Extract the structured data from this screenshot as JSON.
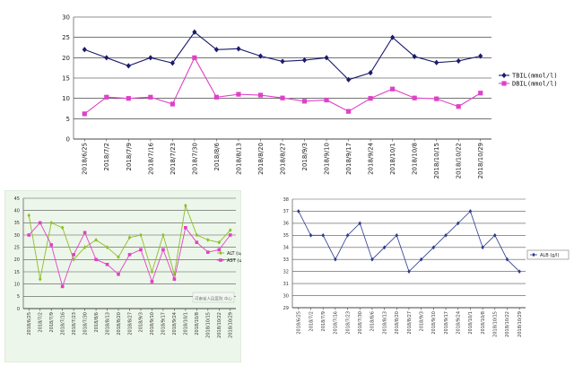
{
  "chart_data": [
    {
      "type": "line",
      "x": [
        "2018/6/25",
        "2018/7/2",
        "2018/7/9",
        "2018/7/16",
        "2018/7/23",
        "2018/7/30",
        "2018/8/6",
        "2018/8/13",
        "2018/8/20",
        "2018/8/27",
        "2018/9/3",
        "2018/9/10",
        "2018/9/17",
        "2018/9/24",
        "2018/10/1",
        "2018/10/8",
        "2018/10/15",
        "2018/10/22",
        "2018/10/29"
      ],
      "ylim": [
        0,
        30
      ],
      "yticks": [
        0,
        5,
        10,
        15,
        20,
        25,
        30
      ],
      "grid": true,
      "legend_position": "right",
      "series": [
        {
          "name": "TBIL(mmol/l)",
          "color": "#1a1a6e",
          "marker": "diamond",
          "values": [
            22,
            20,
            18,
            20,
            18.7,
            26.3,
            22,
            22.2,
            20.4,
            19.1,
            19.4,
            20,
            14.6,
            16.3,
            25,
            20.3,
            18.8,
            19.2,
            20.4
          ]
        },
        {
          "name": "DBIL(mmol/l)",
          "color": "#e040c8",
          "marker": "square",
          "values": [
            6.2,
            10.3,
            10,
            10.3,
            8.6,
            20,
            10.3,
            11,
            10.8,
            10.1,
            9.3,
            9.6,
            6.8,
            10,
            12.3,
            10.1,
            9.9,
            8,
            11.3
          ]
        }
      ]
    },
    {
      "type": "line",
      "x": [
        "2018/6/25",
        "2018/7/2",
        "2018/7/9",
        "2018/7/16",
        "2018/7/23",
        "2018/7/30",
        "2018/8/6",
        "2018/8/13",
        "2018/8/20",
        "2018/8/27",
        "2018/9/3",
        "2018/9/10",
        "2018/9/17",
        "2018/9/24",
        "2018/10/1",
        "2018/10/8",
        "2018/10/15",
        "2018/10/22",
        "2018/10/29"
      ],
      "ylim": [
        0,
        45
      ],
      "yticks": [
        0,
        5,
        10,
        15,
        20,
        25,
        30,
        35,
        40,
        45
      ],
      "grid": true,
      "legend_position": "right",
      "watermark": "河南省人民医院 中心",
      "series": [
        {
          "name": "ALT (u/l)",
          "color": "#8cbf2a",
          "marker": "diamond",
          "values": [
            38,
            12,
            35,
            33,
            20,
            25,
            28,
            25,
            21,
            29,
            30,
            15,
            30,
            14,
            42,
            30,
            28,
            27,
            32
          ]
        },
        {
          "name": "AST (u/l)",
          "color": "#e040c8",
          "marker": "square",
          "values": [
            30,
            35,
            26,
            9,
            22,
            31,
            20,
            18,
            14,
            22,
            24,
            11,
            24,
            12,
            33,
            27,
            23,
            24,
            30
          ]
        }
      ]
    },
    {
      "type": "line",
      "x": [
        "2018/6/25",
        "2018/7/2",
        "2018/7/9",
        "2018/7/16",
        "2018/7/23",
        "2018/7/30",
        "2018/8/6",
        "2018/8/13",
        "2018/8/20",
        "2018/8/27",
        "2018/9/3",
        "2018/9/10",
        "2018/9/17",
        "2018/9/24",
        "2018/10/1",
        "2018/10/8",
        "2018/10/15",
        "2018/10/22",
        "2018/10/29"
      ],
      "ylim": [
        29,
        38
      ],
      "yticks": [
        29,
        30,
        31,
        32,
        33,
        34,
        35,
        36,
        37,
        38
      ],
      "grid": true,
      "legend_position": "right",
      "series": [
        {
          "name": "ALB (g/l)",
          "color": "#2a3a8e",
          "marker": "diamond",
          "values": [
            37,
            35,
            35,
            33,
            35,
            36,
            33,
            34,
            35,
            32,
            33,
            34,
            35,
            36,
            37,
            34,
            35,
            33,
            32
          ]
        }
      ]
    }
  ]
}
